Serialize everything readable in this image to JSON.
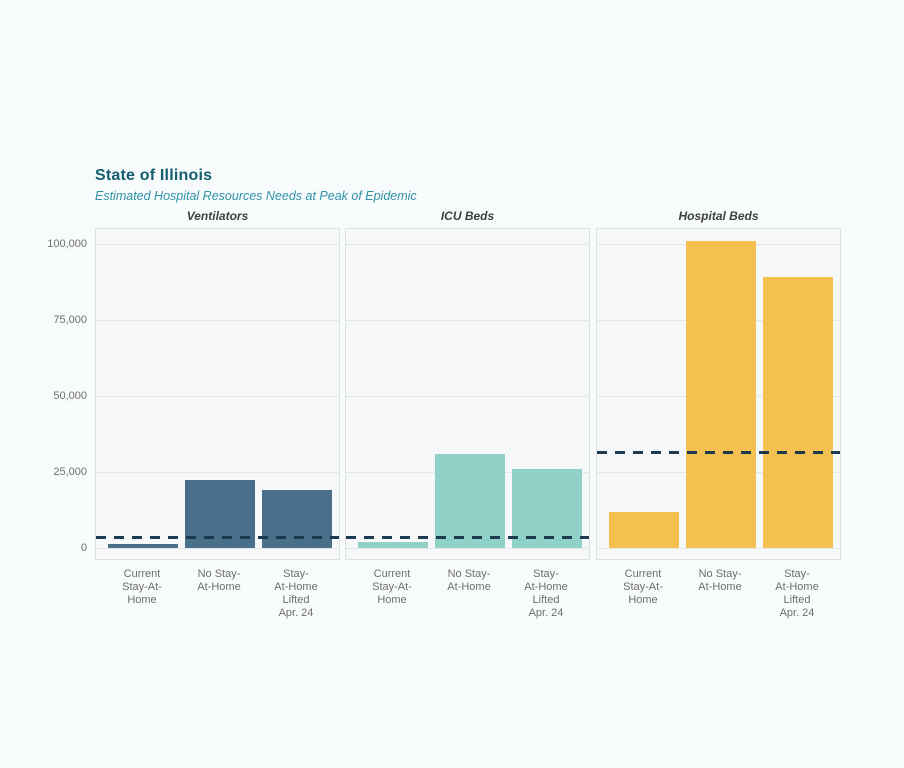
{
  "chart": {
    "title": "State of Illinois",
    "subtitle": "Estimated Hospital Resources Needs at Peak of Epidemic"
  },
  "chart_data": {
    "type": "bar",
    "title": "State of Illinois",
    "subtitle": "Estimated Hospital Resources Needs at Peak of Epidemic",
    "categories": [
      "Current Stay-At-Home",
      "No Stay-At-Home",
      "Stay-At-Home Lifted Apr. 24"
    ],
    "category_tick_lines": [
      "Current\nStay-At-\nHome",
      "No Stay-\nAt-Home",
      "Stay-\nAt-Home\nLifted\nApr. 24"
    ],
    "ylabel": "",
    "xlabel": "",
    "ylim": [
      0,
      105500
    ],
    "grid": true,
    "legend_position": "none",
    "y_ticks": [
      0,
      25000,
      50000,
      75000,
      100000
    ],
    "y_tick_labels": [
      "0",
      "25,000",
      "50,000",
      "75,000",
      "100,000"
    ],
    "panels": [
      {
        "label": "Ventilators",
        "bar_color": "#49708A",
        "values": [
          1300,
          22500,
          19000
        ],
        "capacity_line": 3500
      },
      {
        "label": "ICU Beds",
        "bar_color": "#90D1C8",
        "values": [
          2000,
          31000,
          26000
        ],
        "capacity_line": 3500
      },
      {
        "label": "Hospital Beds",
        "bar_color": "#F4C04F",
        "values": [
          12000,
          101000,
          89000
        ],
        "capacity_line": 31500
      }
    ],
    "capacity_line_color": "#1C3B50",
    "annotations": "dashed horizontal line = existing capacity in each panel"
  },
  "colors": {
    "page_background": "#F8FBFC",
    "panel_background": "#F6F8F9",
    "panel_border": "#DEE1E4",
    "gridline": "#E4E7EA",
    "title": "#135D6E",
    "subtitle": "#2E93A7",
    "tick_text": "#6E6E6E"
  }
}
